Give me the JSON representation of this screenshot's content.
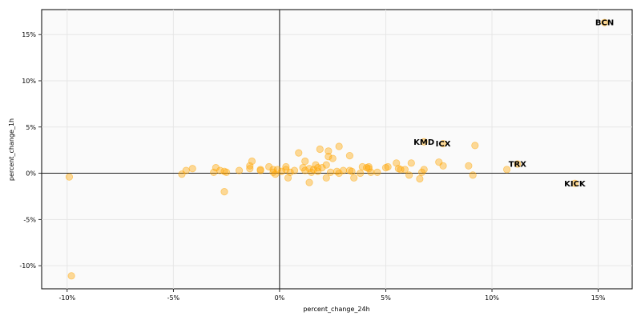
{
  "chart_data": {
    "type": "scatter",
    "title": "",
    "xlabel": "percent_change_24h",
    "ylabel": "percent_change_1h",
    "xlim": [
      -11.2,
      16.6
    ],
    "ylim": [
      -12.5,
      17.7
    ],
    "x_ticks": [
      -10,
      -5,
      0,
      5,
      10,
      15
    ],
    "y_ticks": [
      -10,
      -5,
      0,
      5,
      10,
      15
    ],
    "x_tick_labels": [
      "-10%",
      "-5%",
      "0%",
      "5%",
      "10%",
      "15%"
    ],
    "y_tick_labels": [
      "-10%",
      "-5%",
      "0%",
      "5%",
      "10%",
      "15%"
    ],
    "grid": true,
    "reference_lines": {
      "x": 0,
      "y": 0
    },
    "colors": {
      "point": "#FFA500",
      "grid": "#e6e6e6",
      "background": "#fafafa",
      "axis": "#000000"
    },
    "points": [
      {
        "x": -9.9,
        "y": -0.4
      },
      {
        "x": -9.8,
        "y": -11.1
      },
      {
        "x": -4.6,
        "y": -0.1
      },
      {
        "x": -4.4,
        "y": 0.3
      },
      {
        "x": -4.1,
        "y": 0.5
      },
      {
        "x": -3.1,
        "y": 0.1
      },
      {
        "x": -3.0,
        "y": 0.6
      },
      {
        "x": -2.8,
        "y": 0.3
      },
      {
        "x": -2.6,
        "y": 0.2
      },
      {
        "x": -2.5,
        "y": 0.1
      },
      {
        "x": -2.6,
        "y": -2.0
      },
      {
        "x": -1.9,
        "y": 0.3
      },
      {
        "x": -1.4,
        "y": 0.8
      },
      {
        "x": -1.4,
        "y": 0.5
      },
      {
        "x": -1.3,
        "y": 1.3
      },
      {
        "x": -0.9,
        "y": 0.3
      },
      {
        "x": -0.9,
        "y": 0.4
      },
      {
        "x": -0.5,
        "y": 0.7
      },
      {
        "x": -0.3,
        "y": 0.1
      },
      {
        "x": -0.3,
        "y": 0.4
      },
      {
        "x": -0.2,
        "y": -0.1
      },
      {
        "x": -0.1,
        "y": 0.4
      },
      {
        "x": 0.1,
        "y": 0.2
      },
      {
        "x": 0.3,
        "y": 0.7
      },
      {
        "x": 0.3,
        "y": 0.4
      },
      {
        "x": 0.4,
        "y": -0.5
      },
      {
        "x": 0.5,
        "y": 0.1
      },
      {
        "x": 0.7,
        "y": 0.3
      },
      {
        "x": 0.9,
        "y": 2.2
      },
      {
        "x": 1.1,
        "y": 0.6
      },
      {
        "x": 1.2,
        "y": 0.3
      },
      {
        "x": 1.2,
        "y": 1.3
      },
      {
        "x": 1.4,
        "y": 0.5
      },
      {
        "x": 1.4,
        "y": -1.0
      },
      {
        "x": 1.5,
        "y": 0.1
      },
      {
        "x": 1.6,
        "y": 0.4
      },
      {
        "x": 1.7,
        "y": 0.9
      },
      {
        "x": 1.8,
        "y": 0.2
      },
      {
        "x": 1.8,
        "y": 0.6
      },
      {
        "x": 1.9,
        "y": 2.6
      },
      {
        "x": 2.0,
        "y": 0.6
      },
      {
        "x": 2.2,
        "y": 0.9
      },
      {
        "x": 2.2,
        "y": -0.5
      },
      {
        "x": 2.3,
        "y": 2.4
      },
      {
        "x": 2.3,
        "y": 1.8
      },
      {
        "x": 2.4,
        "y": 0.1
      },
      {
        "x": 2.5,
        "y": 1.6
      },
      {
        "x": 2.7,
        "y": 0.2
      },
      {
        "x": 2.8,
        "y": 2.9
      },
      {
        "x": 2.8,
        "y": 0.0
      },
      {
        "x": 3.0,
        "y": 0.3
      },
      {
        "x": 3.3,
        "y": 1.9
      },
      {
        "x": 3.3,
        "y": 0.3
      },
      {
        "x": 3.4,
        "y": 0.2
      },
      {
        "x": 3.5,
        "y": -0.5
      },
      {
        "x": 3.8,
        "y": 0.0
      },
      {
        "x": 3.9,
        "y": 0.7
      },
      {
        "x": 4.1,
        "y": 0.6
      },
      {
        "x": 4.2,
        "y": 0.5
      },
      {
        "x": 4.2,
        "y": 0.7
      },
      {
        "x": 4.3,
        "y": 0.1
      },
      {
        "x": 4.6,
        "y": 0.1
      },
      {
        "x": 5.0,
        "y": 0.6
      },
      {
        "x": 5.1,
        "y": 0.7
      },
      {
        "x": 5.5,
        "y": 1.1
      },
      {
        "x": 5.6,
        "y": 0.5
      },
      {
        "x": 5.7,
        "y": 0.4
      },
      {
        "x": 5.9,
        "y": 0.4
      },
      {
        "x": 6.1,
        "y": -0.2
      },
      {
        "x": 6.2,
        "y": 1.1
      },
      {
        "x": 6.6,
        "y": -0.6
      },
      {
        "x": 6.7,
        "y": 0.1
      },
      {
        "x": 6.8,
        "y": 0.4
      },
      {
        "x": 6.8,
        "y": 3.4
      },
      {
        "x": 7.5,
        "y": 1.2
      },
      {
        "x": 7.7,
        "y": 0.8
      },
      {
        "x": 7.7,
        "y": 3.2
      },
      {
        "x": 8.9,
        "y": 0.8
      },
      {
        "x": 9.1,
        "y": -0.2
      },
      {
        "x": 9.2,
        "y": 3.0
      },
      {
        "x": 10.7,
        "y": 0.4
      },
      {
        "x": 11.2,
        "y": 1.0
      },
      {
        "x": 13.9,
        "y": -1.1
      },
      {
        "x": 15.3,
        "y": 16.3
      }
    ],
    "annotations": [
      {
        "label": "BCN",
        "x": 15.3,
        "y": 16.3
      },
      {
        "label": "KMD",
        "x": 6.8,
        "y": 3.4
      },
      {
        "label": "ICX",
        "x": 7.7,
        "y": 3.2
      },
      {
        "label": "TRX",
        "x": 11.2,
        "y": 1.0
      },
      {
        "label": "KICK",
        "x": 13.9,
        "y": -1.1
      }
    ]
  }
}
